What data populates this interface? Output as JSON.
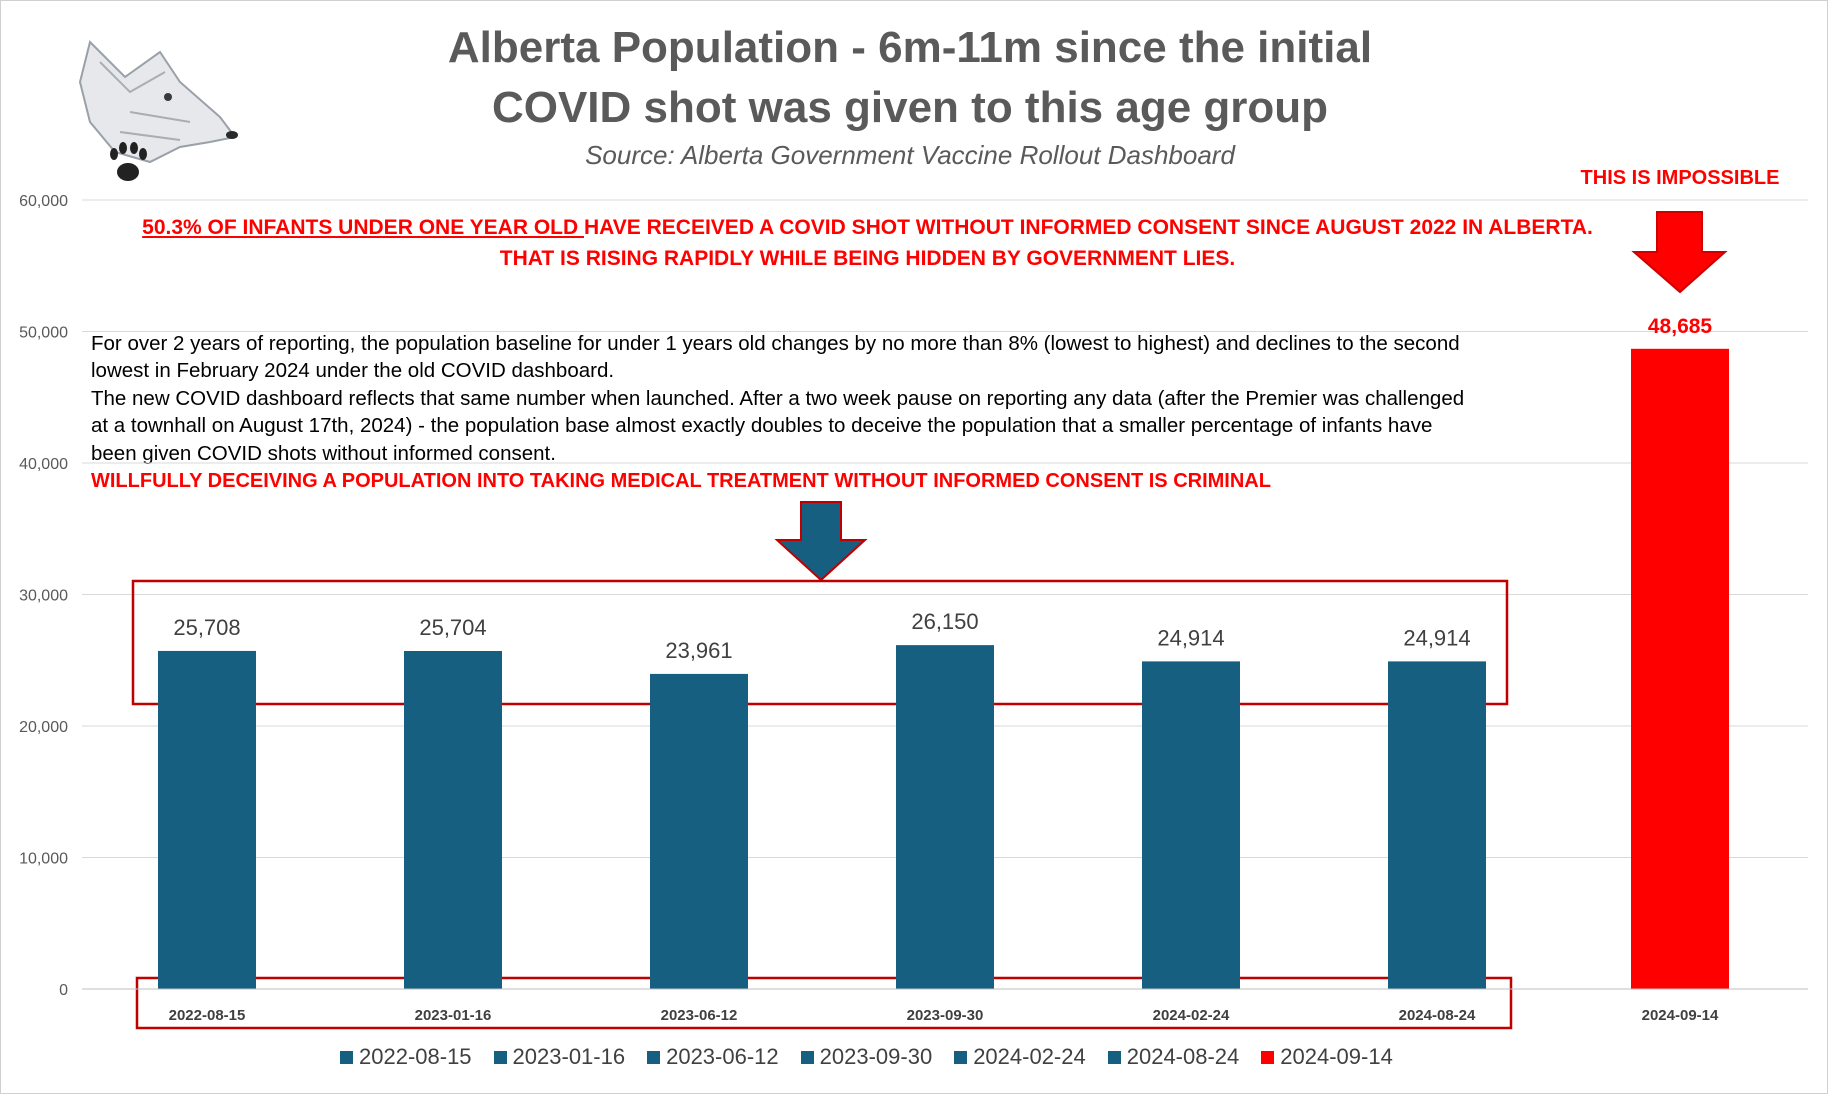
{
  "title_line1": "Alberta Population - 6m-11m  since the initial",
  "title_line2": "COVID shot was given to this age group",
  "subtitle": "Source: Alberta Government Vaccine Rollout Dashboard",
  "headline": {
    "underlined": "50.3% OF INFANTS UNDER ONE YEAR OLD ",
    "rest": " HAVE RECEIVED A COVID SHOT WITHOUT INFORMED CONSENT SINCE AUGUST 2022 IN ALBERTA.",
    "line2": "THAT IS RISING RAPIDLY WHILE BEING HIDDEN BY GOVERNMENT LIES."
  },
  "paragraph": [
    "For over 2 years of reporting, the population baseline for under 1 years old changes by no more than 8% (lowest to highest) and declines to the second",
    "lowest in February 2024 under the old COVID dashboard.",
    "The new COVID dashboard reflects that same number when launched. After a two week pause on reporting any data (after the Premier was challenged",
    "at a townhall on August 17th, 2024) - the population base almost exactly doubles to deceive the population that a smaller percentage of infants have",
    "been given COVID shots without informed consent."
  ],
  "warning": "WILLFULLY DECEIVING A POPULATION INTO TAKING MEDICAL TREATMENT WITHOUT INFORMED CONSENT IS CRIMINAL",
  "impossible_label": "THIS IS IMPOSSIBLE",
  "colors": {
    "bar": "#175f80",
    "highlight": "#ff0000",
    "grid": "#d9d9d9",
    "box": "#c00000"
  },
  "icons": {
    "logo": "wolf-head-paw-logo-icon"
  },
  "chart_data": {
    "type": "bar",
    "categories": [
      "2022-08-15",
      "2023-01-16",
      "2023-06-12",
      "2023-09-30",
      "2024-02-24",
      "2024-08-24",
      "2024-09-14"
    ],
    "values": [
      25708,
      25704,
      23961,
      26150,
      24914,
      24914,
      48685
    ],
    "value_labels": [
      "25,708",
      "25,704",
      "23,961",
      "26,150",
      "24,914",
      "24,914",
      "48,685"
    ],
    "bar_colors": [
      "#175f80",
      "#175f80",
      "#175f80",
      "#175f80",
      "#175f80",
      "#175f80",
      "#ff0000"
    ],
    "ylim": [
      0,
      60000
    ],
    "yticks": [
      0,
      10000,
      20000,
      30000,
      40000,
      50000,
      60000
    ],
    "ytick_labels": [
      "0",
      "10,000",
      "20,000",
      "30,000",
      "40,000",
      "50,000",
      "60,000"
    ],
    "grid": true,
    "legend_position": "bottom",
    "legend": [
      "2022-08-15",
      "2023-01-16",
      "2023-06-12",
      "2023-09-30",
      "2024-02-24",
      "2024-08-24",
      "2024-09-14"
    ]
  }
}
